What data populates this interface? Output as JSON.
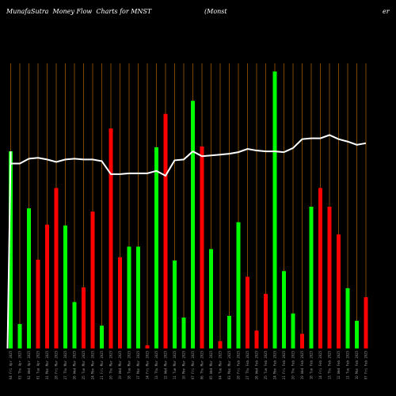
{
  "header": {
    "site": "MunafaSutra  Money Flow  Charts for MNST",
    "company": "(Monst",
    "suffix": "er"
  },
  "chart_data": {
    "type": "bar",
    "title": "MunafaSutra  Money Flow  Charts for MNST",
    "colors": {
      "background": "#000000",
      "grid": "#d07a00",
      "up": "#00ff00",
      "down": "#ff0000",
      "line": "#ffffff"
    },
    "categories": [
      "04 Fri Apr 2025",
      "03 Thu Apr 2025",
      "02 Wed Apr 2025",
      "01 Tue Apr 2025",
      "31 Mon Mar 2025",
      "28 Fri Mar 2025",
      "27 Thu Mar 2025",
      "26 Wed Mar 2025",
      "25 Tue Mar 2025",
      "24 Mon Mar 2025",
      "21 Fri Mar 2025",
      "20 Thu Mar 2025",
      "19 Wed Mar 2025",
      "18 Tue Mar 2025",
      "17 Mon Mar 2025",
      "14 Fri Mar 2025",
      "13 Thu Mar 2025",
      "12 Wed Mar 2025",
      "11 Tue Mar 2025",
      "10 Mon Mar 2025",
      "07 Fri Mar 2025",
      "06 Thu Mar 2025",
      "05 Wed Mar 2025",
      "04 Tue Mar 2025",
      "03 Mon Mar 2025",
      "28 Fri Feb 2025",
      "27 Thu Feb 2025",
      "26 Wed Feb 2025",
      "25 Tue Feb 2025",
      "24 Mon Feb 2025",
      "21 Fri Feb 2025",
      "20 Thu Feb 2025",
      "19 Wed Feb 2025",
      "18 Tue Feb 2025",
      "14 Fri Feb 2025",
      "13 Thu Feb 2025",
      "12 Wed Feb 2025",
      "11 Tue Feb 2025",
      "10 Mon Feb 2025",
      "07 Fri Feb 2025"
    ],
    "values": [
      242,
      30,
      172,
      109,
      152,
      197,
      151,
      57,
      75,
      168,
      28,
      270,
      112,
      125,
      125,
      4,
      247,
      288,
      108,
      38,
      304,
      248,
      122,
      9,
      40,
      155,
      88,
      22,
      67,
      340,
      95,
      43,
      18,
      174,
      197,
      174,
      140,
      74,
      34,
      63
    ],
    "directions": [
      "up",
      "up",
      "up",
      "down",
      "down",
      "down",
      "up",
      "up",
      "down",
      "down",
      "up",
      "down",
      "down",
      "up",
      "up",
      "down",
      "up",
      "down",
      "up",
      "up",
      "up",
      "down",
      "up",
      "down",
      "up",
      "up",
      "down",
      "down",
      "down",
      "up",
      "up",
      "up",
      "down",
      "up",
      "down",
      "down",
      "down",
      "up",
      "up",
      "down"
    ],
    "price_line": [
      227,
      227,
      233,
      234,
      232,
      229,
      232,
      233,
      232,
      232,
      230,
      214,
      214,
      215,
      215,
      215,
      218,
      212,
      231,
      232,
      242,
      236,
      237,
      238,
      239,
      241,
      245,
      243,
      242,
      242,
      241,
      246,
      257,
      258,
      258,
      262,
      257,
      254,
      250,
      252
    ],
    "ylim": [
      0,
      350
    ],
    "xlabel": "",
    "ylabel": "",
    "legend": "none",
    "grid": true
  }
}
